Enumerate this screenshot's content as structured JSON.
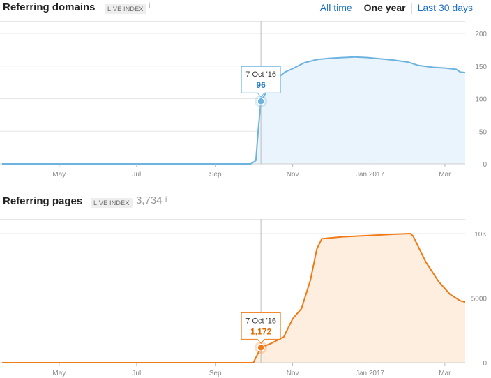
{
  "header": {
    "title": "Referring domains",
    "badge": "LIVE INDEX",
    "info": "i"
  },
  "range_tabs": [
    "All time",
    "One year",
    "Last 30 days"
  ],
  "active_range": "One year",
  "pages_header": {
    "title": "Referring pages",
    "badge": "LIVE INDEX",
    "count": "3,734",
    "info": "i"
  },
  "chart_data": [
    {
      "type": "area",
      "x_start": "2016-03-17",
      "x_end": "2017-03-17",
      "x_tick_labels": [
        "May",
        "Jul",
        "Sep",
        "Nov",
        "Jan 2017",
        "Mar"
      ],
      "x_tick_dates": [
        "2016-05-01",
        "2016-07-01",
        "2016-09-01",
        "2016-11-01",
        "2017-01-01",
        "2017-03-01"
      ],
      "ylim": [
        0,
        200
      ],
      "y_ticks": [
        0,
        50,
        100,
        150,
        200
      ],
      "grid": true,
      "color": "#6db3e0",
      "fill": "#e9f4fc",
      "points": [
        [
          "2016-03-17",
          0
        ],
        [
          "2016-09-29",
          0
        ],
        [
          "2016-10-03",
          5
        ],
        [
          "2016-10-05",
          55
        ],
        [
          "2016-10-07",
          96
        ],
        [
          "2016-10-13",
          116
        ],
        [
          "2016-10-19",
          130
        ],
        [
          "2016-10-26",
          141
        ],
        [
          "2016-11-01",
          146
        ],
        [
          "2016-11-10",
          155
        ],
        [
          "2016-11-20",
          160
        ],
        [
          "2016-12-01",
          162
        ],
        [
          "2016-12-10",
          163
        ],
        [
          "2016-12-20",
          164
        ],
        [
          "2016-12-30",
          163
        ],
        [
          "2017-01-10",
          161
        ],
        [
          "2017-01-20",
          159
        ],
        [
          "2017-01-31",
          156
        ],
        [
          "2017-02-08",
          151
        ],
        [
          "2017-02-20",
          148
        ],
        [
          "2017-03-01",
          147
        ],
        [
          "2017-03-10",
          145
        ],
        [
          "2017-03-13",
          141
        ],
        [
          "2017-03-17",
          140
        ]
      ],
      "tooltip": {
        "date": "7 Oct '16",
        "value": "96",
        "x": "2016-10-07",
        "y": 96
      }
    },
    {
      "type": "area",
      "x_start": "2016-03-17",
      "x_end": "2017-03-17",
      "x_tick_labels": [
        "May",
        "Jul",
        "Sep",
        "Nov",
        "Jan 2017",
        "Mar"
      ],
      "x_tick_dates": [
        "2016-05-01",
        "2016-07-01",
        "2016-09-01",
        "2016-11-01",
        "2017-01-01",
        "2017-03-01"
      ],
      "ylim": [
        0,
        10000
      ],
      "y_ticks": [
        0,
        5000,
        10000
      ],
      "y_tick_labels": [
        "0",
        "5000",
        "10K"
      ],
      "grid": true,
      "color": "#ef7a16",
      "fill": "#fdeee0",
      "points": [
        [
          "2016-03-17",
          0
        ],
        [
          "2016-10-01",
          0
        ],
        [
          "2016-10-07",
          1172
        ],
        [
          "2016-10-15",
          1500
        ],
        [
          "2016-10-25",
          2000
        ],
        [
          "2016-11-01",
          3400
        ],
        [
          "2016-11-08",
          4200
        ],
        [
          "2016-11-15",
          6400
        ],
        [
          "2016-11-20",
          8800
        ],
        [
          "2016-11-24",
          9600
        ],
        [
          "2016-12-10",
          9750
        ],
        [
          "2016-12-31",
          9850
        ],
        [
          "2017-01-20",
          9950
        ],
        [
          "2017-02-02",
          10000
        ],
        [
          "2017-02-04",
          9800
        ],
        [
          "2017-02-14",
          7800
        ],
        [
          "2017-02-24",
          6300
        ],
        [
          "2017-03-05",
          5300
        ],
        [
          "2017-03-13",
          4800
        ],
        [
          "2017-03-17",
          4700
        ]
      ],
      "tooltip": {
        "date": "7 Oct '16",
        "value": "1,172",
        "x": "2016-10-07",
        "y": 1172
      }
    }
  ]
}
